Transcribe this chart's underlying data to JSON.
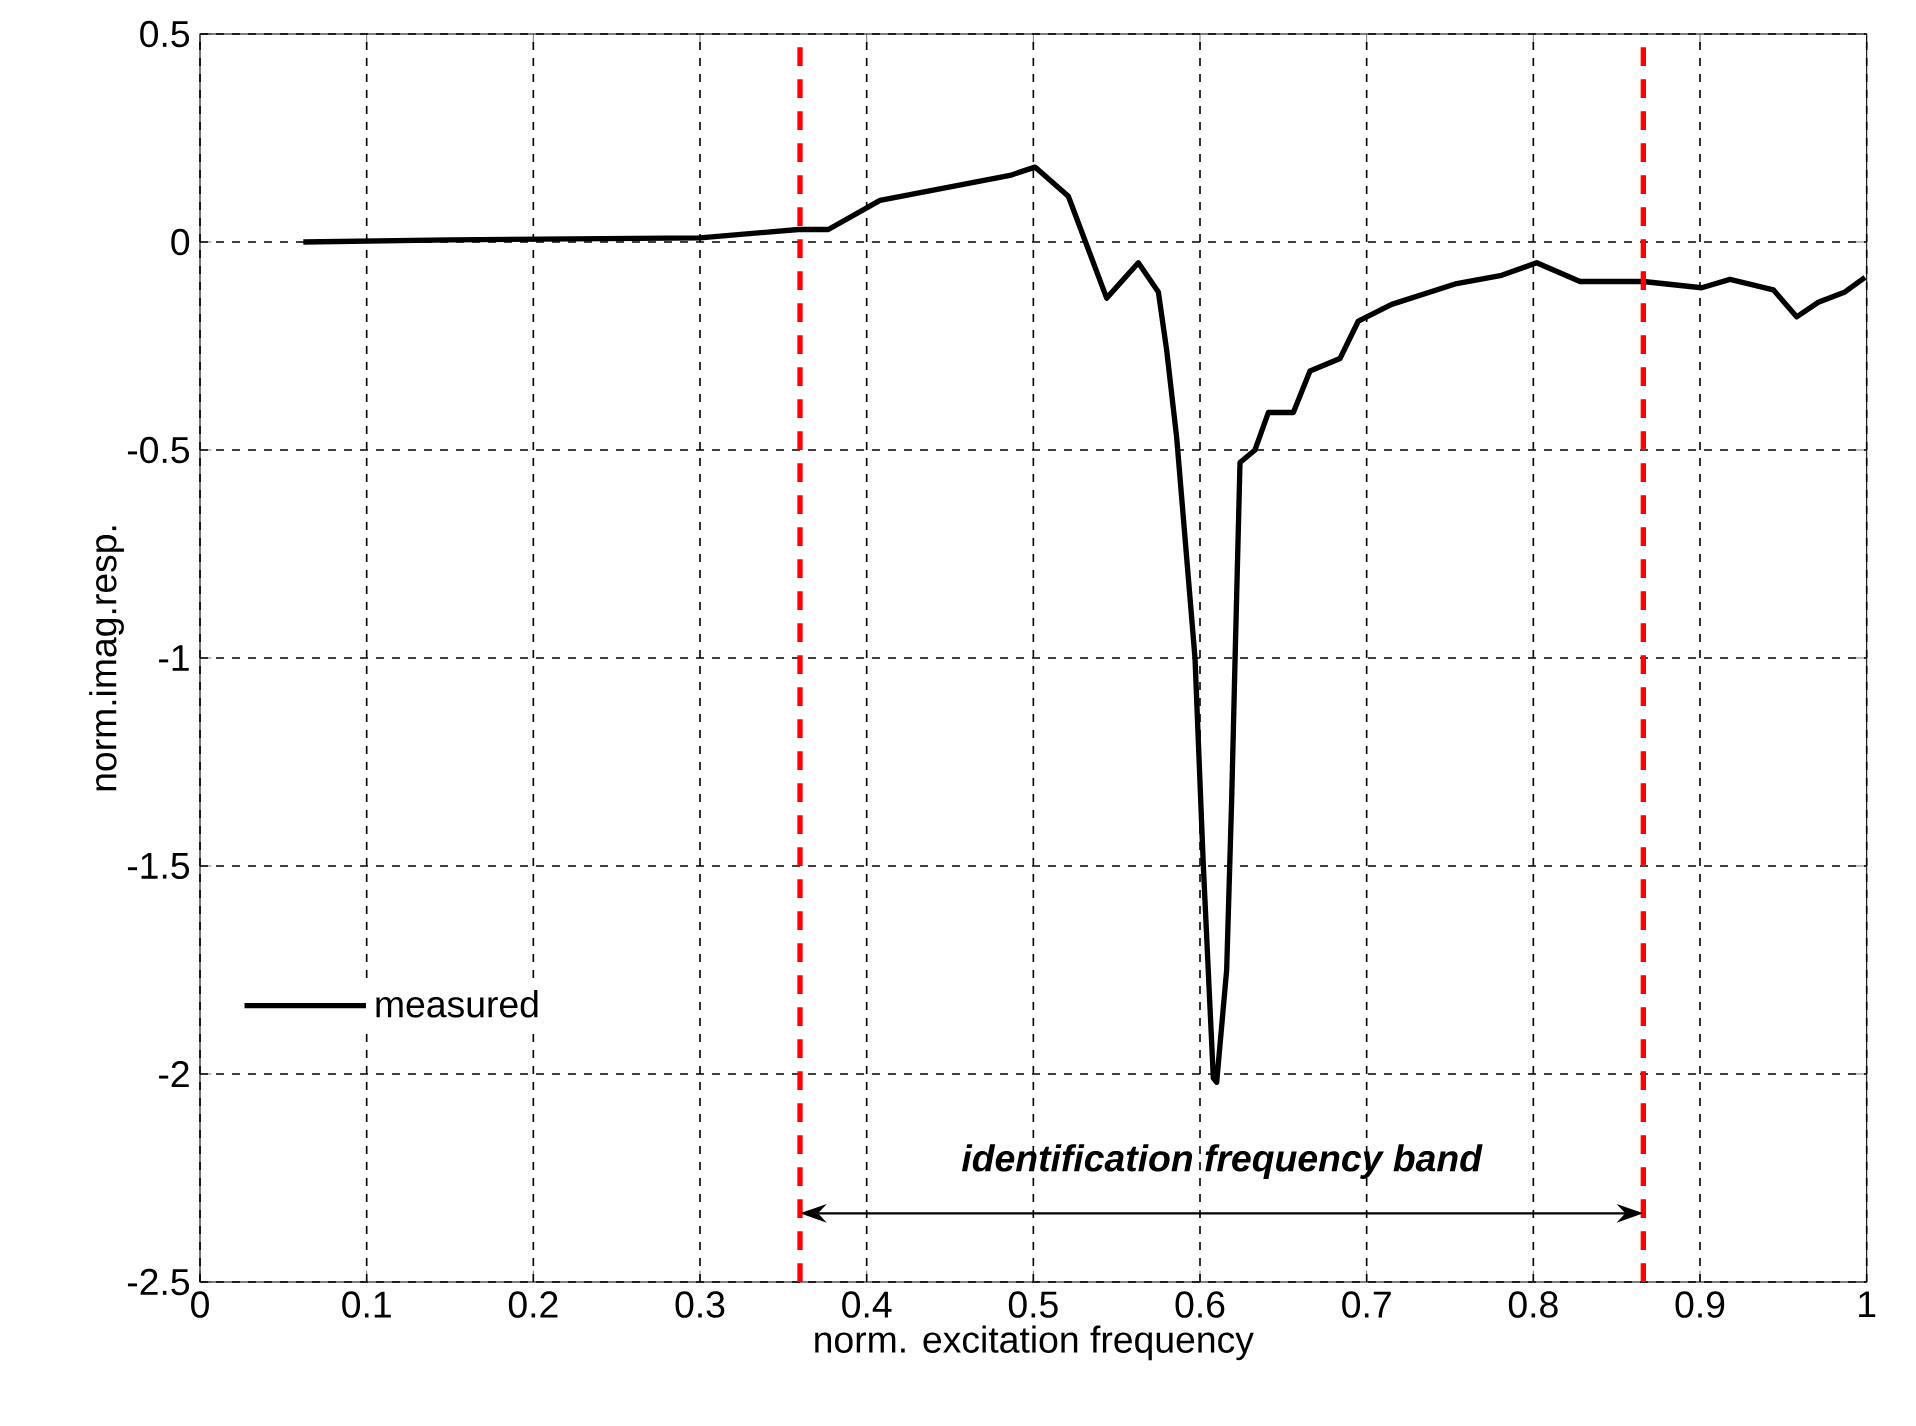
{
  "chart_data": {
    "type": "line",
    "xlabel": "norm. excitation frequency",
    "ylabel": "norm.imag.resp.",
    "xlim": [
      0,
      1
    ],
    "ylim": [
      -2.5,
      0.5
    ],
    "xticks": [
      0,
      0.1,
      0.2,
      0.3,
      0.4,
      0.5,
      0.6,
      0.7,
      0.8,
      0.9,
      1
    ],
    "yticks": [
      -2.5,
      -2,
      -1.5,
      -1,
      -0.5,
      0,
      0.5
    ],
    "grid": true,
    "legend": "bottom left",
    "series": [
      {
        "name": "measured",
        "color": "#000000",
        "x": [
          0.062,
          0.15,
          0.3,
          0.359,
          0.377,
          0.408,
          0.486,
          0.501,
          0.521,
          0.544,
          0.563,
          0.575,
          0.58,
          0.586,
          0.597,
          0.602,
          0.608,
          0.61,
          0.616,
          0.619,
          0.621,
          0.624,
          0.633,
          0.641,
          0.656,
          0.666,
          0.684,
          0.695,
          0.715,
          0.754,
          0.781,
          0.802,
          0.828,
          0.866,
          0.901,
          0.918,
          0.944,
          0.958,
          0.971,
          0.987,
          0.999
        ],
        "values": [
          0,
          0.005,
          0.01,
          0.03,
          0.03,
          0.1,
          0.16,
          0.18,
          0.11,
          -0.135,
          -0.05,
          -0.12,
          -0.26,
          -0.47,
          -1.0,
          -1.5,
          -2.01,
          -2.02,
          -1.75,
          -1.34,
          -1.01,
          -0.53,
          -0.5,
          -0.41,
          -0.41,
          -0.31,
          -0.28,
          -0.19,
          -0.15,
          -0.1,
          -0.08,
          -0.05,
          -0.095,
          -0.095,
          -0.11,
          -0.09,
          -0.115,
          -0.18,
          -0.145,
          -0.12,
          -0.085
        ]
      }
    ],
    "ref_lines": [
      {
        "axis": "x",
        "value": 0.36,
        "color": "#ff0000",
        "line_style": "dashed"
      },
      {
        "axis": "x",
        "value": 0.866,
        "color": "#ff0000",
        "line_style": "dashed"
      }
    ],
    "annotations": [
      "identification frequency band"
    ]
  }
}
